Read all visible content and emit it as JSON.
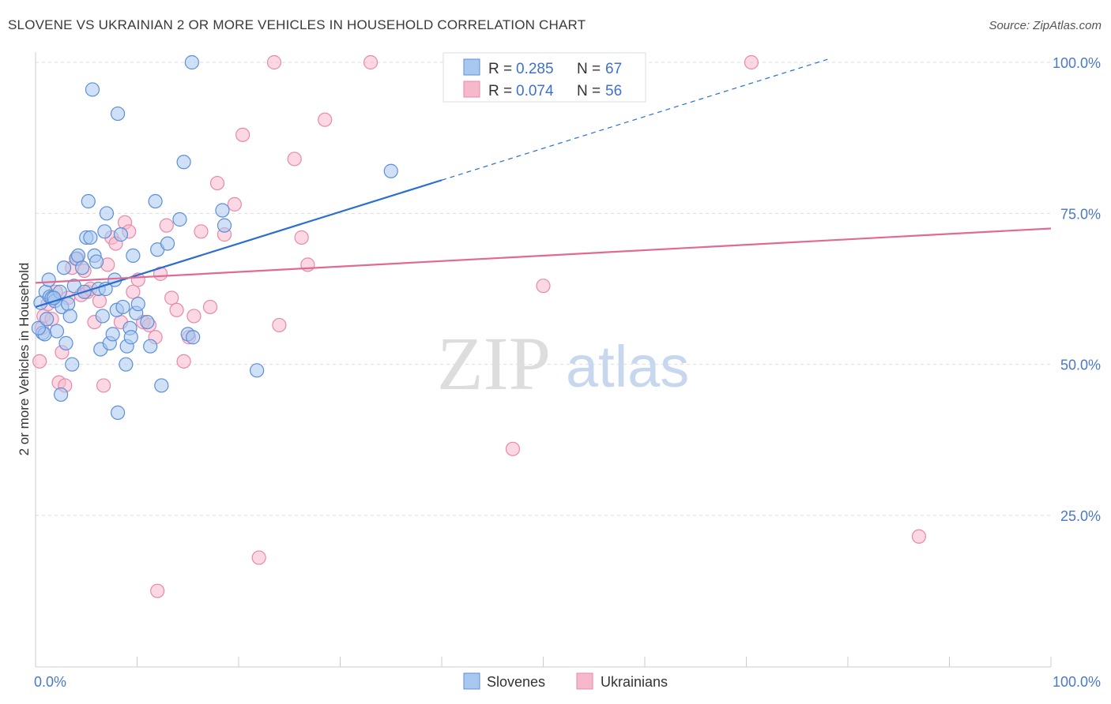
{
  "title": "SLOVENE VS UKRAINIAN 2 OR MORE VEHICLES IN HOUSEHOLD CORRELATION CHART",
  "source": "Source: ZipAtlas.com",
  "watermark": {
    "zip": "ZIP",
    "atlas": "atlas"
  },
  "colors": {
    "slovenes_fill": "#a9c8f0",
    "slovenes_stroke": "#5b8fd8",
    "slovenes_line": "#2a6fd0",
    "ukrainians_fill": "#f7b8cc",
    "ukrainians_stroke": "#e889a8",
    "ukrainians_line": "#e06a93",
    "tick_label": "#4a78c8",
    "grid": "#dddddd"
  },
  "legend": {
    "r_label": "R =",
    "n_label": "N =",
    "slovenes": {
      "r": "0.285",
      "n": "67"
    },
    "ukrainians": {
      "r": "0.074",
      "n": "56"
    }
  },
  "bottom_legend": [
    "Slovenes",
    "Ukrainians"
  ],
  "chart_data": {
    "type": "scatter",
    "title": "SLOVENE VS UKRAINIAN 2 OR MORE VEHICLES IN HOUSEHOLD CORRELATION CHART",
    "xlabel": "",
    "ylabel": "2 or more Vehicles in Household",
    "xlim": [
      0,
      100
    ],
    "ylim": [
      0,
      105
    ],
    "x_tick_labels": [
      "0.0%",
      "100.0%"
    ],
    "y_ticks": [
      25,
      50,
      75,
      100
    ],
    "y_tick_labels": [
      "25.0%",
      "50.0%",
      "75.0%",
      "100.0%"
    ],
    "grid": true,
    "series": [
      {
        "name": "Slovenes",
        "r": 0.285,
        "n": 67,
        "trend": {
          "x0": 0,
          "y0": 59.5,
          "x1": 40,
          "y1": 80.5,
          "dashed_to_x": 78,
          "dashed_to_y": 100.5
        },
        "points": [
          [
            0.5,
            60.2
          ],
          [
            0.7,
            55.2
          ],
          [
            0.9,
            55
          ],
          [
            1,
            62
          ],
          [
            1.3,
            64
          ],
          [
            1.4,
            61.2
          ],
          [
            1.6,
            61
          ],
          [
            1.9,
            60.5
          ],
          [
            2.1,
            55.5
          ],
          [
            2.4,
            62
          ],
          [
            2.6,
            59.5
          ],
          [
            2.5,
            45
          ],
          [
            2.8,
            66
          ],
          [
            3,
            53.5
          ],
          [
            3.2,
            60
          ],
          [
            3.4,
            58
          ],
          [
            3.6,
            50
          ],
          [
            3.8,
            63
          ],
          [
            4,
            67.5
          ],
          [
            4.2,
            68
          ],
          [
            4.6,
            66
          ],
          [
            4.8,
            62
          ],
          [
            5,
            71
          ],
          [
            5.2,
            77
          ],
          [
            5.4,
            71
          ],
          [
            5.8,
            68
          ],
          [
            6,
            67
          ],
          [
            6.2,
            62.5
          ],
          [
            6.4,
            52.5
          ],
          [
            6.6,
            58
          ],
          [
            6.8,
            72
          ],
          [
            7,
            75
          ],
          [
            7.3,
            53.5
          ],
          [
            7.6,
            55
          ],
          [
            7.8,
            64
          ],
          [
            8,
            59
          ],
          [
            8.1,
            42
          ],
          [
            8.4,
            71.5
          ],
          [
            8.6,
            59.5
          ],
          [
            8.9,
            50
          ],
          [
            9,
            53
          ],
          [
            9.3,
            56
          ],
          [
            9.6,
            68
          ],
          [
            9.9,
            58.5
          ],
          [
            10.1,
            60
          ],
          [
            11,
            57
          ],
          [
            11.3,
            53
          ],
          [
            11.8,
            77
          ],
          [
            12,
            69
          ],
          [
            12.4,
            46.5
          ],
          [
            13,
            70
          ],
          [
            14.2,
            74
          ],
          [
            15,
            55
          ],
          [
            15.5,
            54.5
          ],
          [
            18.4,
            75.5
          ],
          [
            18.6,
            73
          ],
          [
            21.8,
            49
          ],
          [
            35,
            82
          ],
          [
            5.6,
            95.5
          ],
          [
            8.1,
            91.5
          ],
          [
            14.6,
            83.5
          ],
          [
            15.4,
            100
          ],
          [
            0.3,
            56
          ],
          [
            1.1,
            57.5
          ],
          [
            1.8,
            61
          ],
          [
            6.9,
            62.5
          ],
          [
            9.4,
            54.5
          ]
        ]
      },
      {
        "name": "Ukrainians",
        "r": 0.074,
        "n": 56,
        "trend": {
          "x0": 0,
          "y0": 63.5,
          "x1": 100,
          "y1": 72.5
        },
        "points": [
          [
            0.4,
            50.5
          ],
          [
            0.6,
            56
          ],
          [
            0.8,
            58
          ],
          [
            1.2,
            60
          ],
          [
            1.6,
            57.5
          ],
          [
            2,
            62
          ],
          [
            2.3,
            47
          ],
          [
            2.6,
            52
          ],
          [
            2.9,
            46.5
          ],
          [
            3.2,
            61
          ],
          [
            3.6,
            66
          ],
          [
            4.1,
            67.5
          ],
          [
            4.5,
            61.5
          ],
          [
            4.8,
            65.5
          ],
          [
            5.1,
            62
          ],
          [
            5.4,
            62.5
          ],
          [
            5.8,
            57
          ],
          [
            6.3,
            60.5
          ],
          [
            6.7,
            46.5
          ],
          [
            7.1,
            66.5
          ],
          [
            7.5,
            71
          ],
          [
            7.9,
            70
          ],
          [
            8.4,
            57
          ],
          [
            8.8,
            73.5
          ],
          [
            9.2,
            72
          ],
          [
            9.6,
            62
          ],
          [
            10.1,
            64
          ],
          [
            10.6,
            57
          ],
          [
            11.2,
            56.5
          ],
          [
            11.8,
            54.5
          ],
          [
            12.3,
            65
          ],
          [
            12.9,
            73
          ],
          [
            13.4,
            61
          ],
          [
            13.9,
            59
          ],
          [
            14.6,
            50.5
          ],
          [
            15.1,
            54.5
          ],
          [
            15.6,
            58
          ],
          [
            16.3,
            72
          ],
          [
            17.2,
            59.5
          ],
          [
            17.9,
            80
          ],
          [
            18.6,
            71.5
          ],
          [
            19.6,
            76.5
          ],
          [
            20.4,
            88
          ],
          [
            24,
            56.5
          ],
          [
            25.5,
            84
          ],
          [
            26.2,
            71
          ],
          [
            26.8,
            66.5
          ],
          [
            28.5,
            90.5
          ],
          [
            47,
            36
          ],
          [
            50,
            63
          ],
          [
            23.5,
            100
          ],
          [
            33,
            100
          ],
          [
            70.5,
            100
          ],
          [
            87,
            21.5
          ],
          [
            12,
            12.5
          ],
          [
            22,
            18
          ]
        ]
      }
    ]
  }
}
